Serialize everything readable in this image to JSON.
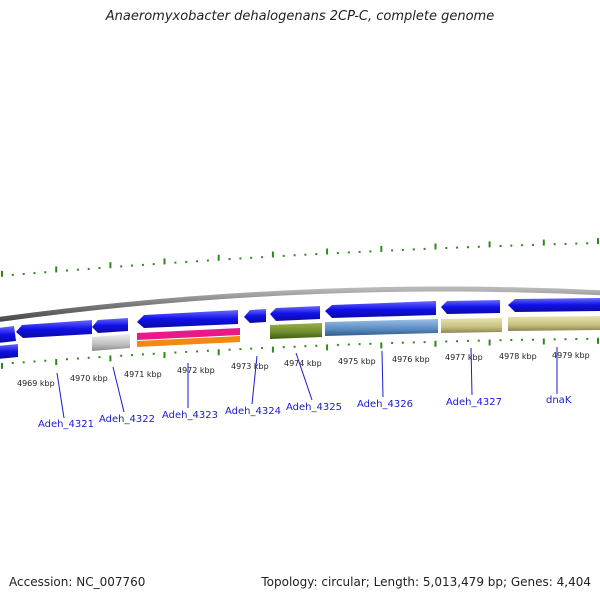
{
  "title": "Anaeromyxobacter dehalogenans 2CP-C, complete genome",
  "footer": {
    "accession": "Accession: NC_007760",
    "topology": "Topology: circular; Length: 5,013,479 bp; Genes: 4,404"
  },
  "kbp_labels": [
    "4969 kbp",
    "4970 kbp",
    "4971 kbp",
    "4972 kbp",
    "4973 kbp",
    "4974 kbp",
    "4975 kbp",
    "4976 kbp",
    "4977 kbp",
    "4978 kbp",
    "4979 kbp"
  ],
  "genes": [
    "Adeh_4321",
    "Adeh_4322",
    "Adeh_4323",
    "Adeh_4324",
    "Adeh_4325",
    "Adeh_4326",
    "Adeh_4327",
    "dnaK"
  ],
  "colors": {
    "gene_blue": "#1010e8",
    "backbone": "#7a7a7a",
    "tick_green": "#2a8a1a",
    "label_blue": "#1a1ad0",
    "pseudo_gray": "#b8b8b8",
    "pink": "#e81a8a",
    "orange": "#f08a10",
    "olive": "#6a8a2a",
    "steel_blue": "#5a8ac0",
    "khaki": "#c8c080"
  }
}
